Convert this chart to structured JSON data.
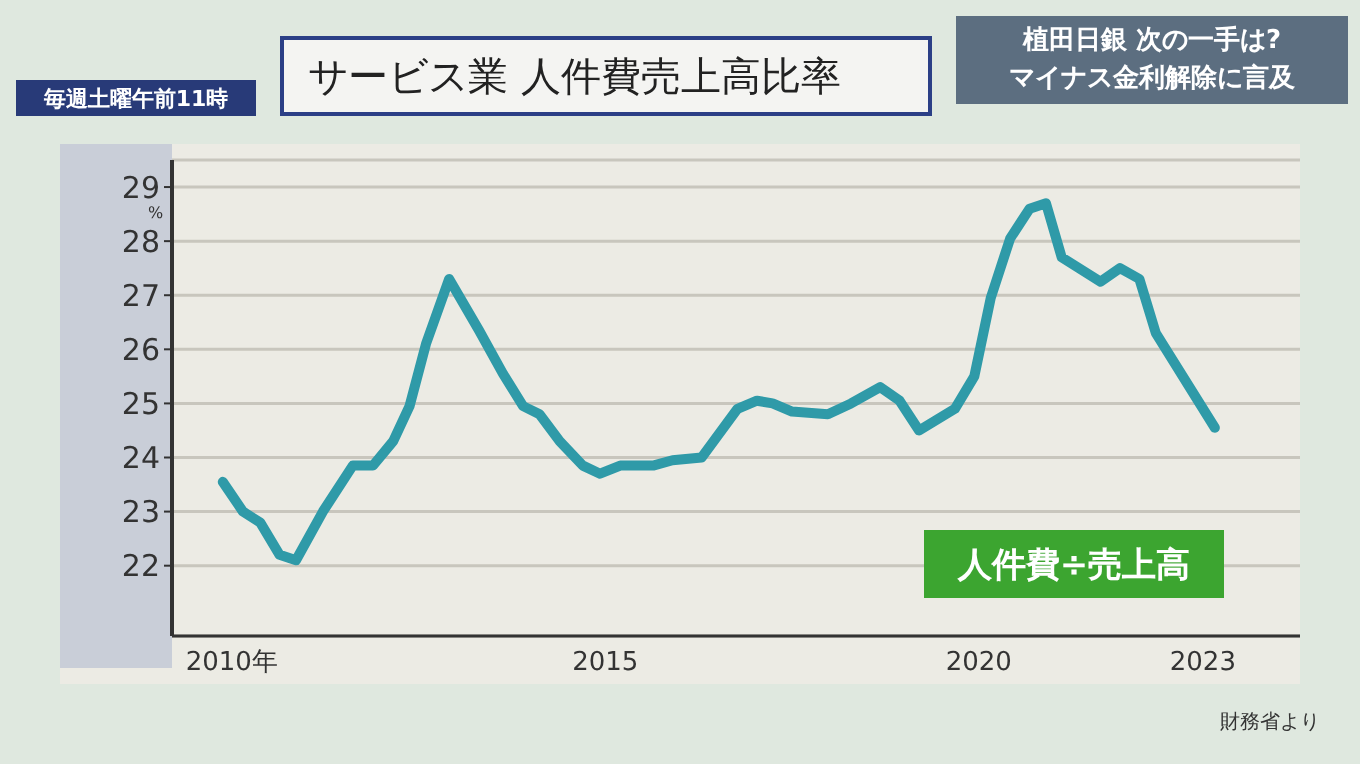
{
  "chart_data": {
    "type": "line",
    "title": "サービス業 人件費売上高比率",
    "ylabel": "%",
    "annotations": [
      "毎週土曜午前11時",
      "植田日銀 次の一手は?",
      "マイナス金利解除に言及",
      "人件費÷売上高",
      "財務省より"
    ],
    "x": [
      2009.88,
      2010.15,
      2010.38,
      2010.64,
      2010.86,
      2011.22,
      2011.62,
      2011.89,
      2012.16,
      2012.38,
      2012.6,
      2012.91,
      2013.31,
      2013.63,
      2013.9,
      2014.12,
      2014.39,
      2014.7,
      2014.93,
      2015.2,
      2015.64,
      2015.9,
      2016.29,
      2016.77,
      2017.03,
      2017.24,
      2017.5,
      2017.98,
      2018.29,
      2018.68,
      2018.94,
      2019.2,
      2019.68,
      2019.94,
      2020.16,
      2020.42,
      2020.68,
      2020.9,
      2021.11,
      2021.63,
      2021.89,
      2022.15,
      2022.37,
      2023.16
    ],
    "series": [
      {
        "color": "#2f9aa8",
        "values": [
          23.55,
          23.0,
          22.8,
          22.2,
          22.1,
          23.0,
          23.85,
          23.85,
          24.3,
          24.95,
          26.1,
          27.3,
          26.35,
          25.55,
          24.95,
          24.8,
          24.3,
          23.85,
          23.7,
          23.85,
          23.85,
          23.95,
          24.0,
          24.9,
          25.05,
          25.0,
          24.85,
          24.8,
          25.0,
          25.3,
          25.05,
          24.5,
          24.9,
          25.5,
          26.95,
          28.05,
          28.6,
          28.7,
          27.7,
          27.25,
          27.5,
          27.3,
          26.3,
          24.55
        ]
      }
    ],
    "xlim": [
      2009.2,
      2024.3
    ],
    "xticks": [
      {
        "value": 2010,
        "label": "2010年"
      },
      2015,
      2020,
      2023
    ],
    "ylim": [
      20.7,
      29.5
    ],
    "yticks": [
      22,
      23,
      24,
      25,
      26,
      27,
      28,
      29
    ],
    "grid": "y",
    "marker": "none",
    "line_style": "solid",
    "legend": false
  }
}
